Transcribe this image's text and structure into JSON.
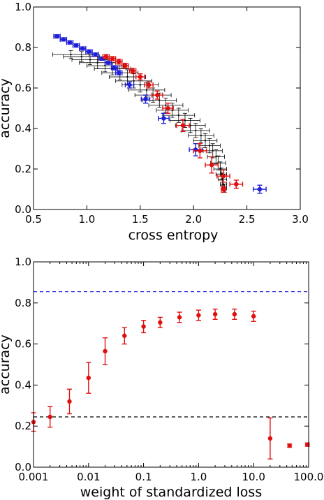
{
  "colors": {
    "blue": "#1f1fd6",
    "red": "#e01010",
    "black": "#000000",
    "blue_dashed": "#3030e0"
  },
  "chart_data": [
    {
      "type": "scatter",
      "xlabel": "cross entropy",
      "ylabel": "accuracy",
      "xlim": [
        0.5,
        3.0
      ],
      "ylim": [
        0.0,
        1.0
      ],
      "x_ticks": [
        "0.5",
        "1.0",
        "1.5",
        "2.0",
        "2.5",
        "3.0"
      ],
      "y_ticks": [
        "0.0",
        "0.2",
        "0.4",
        "0.6",
        "0.8",
        "1.0"
      ],
      "grid": false,
      "series": [
        {
          "color": "blue",
          "points": [
            {
              "x": 0.72,
              "y": 0.855,
              "xerr": 0.03,
              "yerr": 0.008
            },
            {
              "x": 0.78,
              "y": 0.84,
              "xerr": 0.03,
              "yerr": 0.008
            },
            {
              "x": 0.84,
              "y": 0.825,
              "xerr": 0.03,
              "yerr": 0.008
            },
            {
              "x": 0.9,
              "y": 0.81,
              "xerr": 0.03,
              "yerr": 0.008
            },
            {
              "x": 0.96,
              "y": 0.795,
              "xerr": 0.03,
              "yerr": 0.008
            },
            {
              "x": 1.02,
              "y": 0.78,
              "xerr": 0.03,
              "yerr": 0.008
            },
            {
              "x": 1.08,
              "y": 0.765,
              "xerr": 0.03,
              "yerr": 0.008
            },
            {
              "x": 1.14,
              "y": 0.745,
              "xerr": 0.03,
              "yerr": 0.008
            },
            {
              "x": 1.2,
              "y": 0.725,
              "xerr": 0.03,
              "yerr": 0.008
            },
            {
              "x": 1.26,
              "y": 0.7,
              "xerr": 0.03,
              "yerr": 0.01
            },
            {
              "x": 1.3,
              "y": 0.675,
              "xerr": 0.03,
              "yerr": 0.01
            },
            {
              "x": 1.4,
              "y": 0.615,
              "xerr": 0.04,
              "yerr": 0.015
            },
            {
              "x": 1.55,
              "y": 0.545,
              "xerr": 0.04,
              "yerr": 0.02
            },
            {
              "x": 1.72,
              "y": 0.45,
              "xerr": 0.05,
              "yerr": 0.025
            },
            {
              "x": 2.02,
              "y": 0.295,
              "xerr": 0.06,
              "yerr": 0.03
            },
            {
              "x": 2.62,
              "y": 0.1,
              "xerr": 0.06,
              "yerr": 0.02
            }
          ]
        },
        {
          "color": "red",
          "points": [
            {
              "x": 1.18,
              "y": 0.755,
              "xerr": 0.03,
              "yerr": 0.01
            },
            {
              "x": 1.24,
              "y": 0.745,
              "xerr": 0.03,
              "yerr": 0.01
            },
            {
              "x": 1.3,
              "y": 0.73,
              "xerr": 0.03,
              "yerr": 0.012
            },
            {
              "x": 1.36,
              "y": 0.71,
              "xerr": 0.03,
              "yerr": 0.012
            },
            {
              "x": 1.43,
              "y": 0.685,
              "xerr": 0.03,
              "yerr": 0.012
            },
            {
              "x": 1.5,
              "y": 0.655,
              "xerr": 0.04,
              "yerr": 0.015
            },
            {
              "x": 1.58,
              "y": 0.615,
              "xerr": 0.04,
              "yerr": 0.015
            },
            {
              "x": 1.66,
              "y": 0.565,
              "xerr": 0.05,
              "yerr": 0.02
            },
            {
              "x": 1.76,
              "y": 0.5,
              "xerr": 0.05,
              "yerr": 0.025
            },
            {
              "x": 1.9,
              "y": 0.415,
              "xerr": 0.06,
              "yerr": 0.03
            },
            {
              "x": 2.06,
              "y": 0.29,
              "xerr": 0.06,
              "yerr": 0.035
            },
            {
              "x": 2.17,
              "y": 0.22,
              "xerr": 0.06,
              "yerr": 0.04
            },
            {
              "x": 2.28,
              "y": 0.165,
              "xerr": 0.06,
              "yerr": 0.03
            },
            {
              "x": 2.4,
              "y": 0.125,
              "xerr": 0.06,
              "yerr": 0.02
            },
            {
              "x": 2.28,
              "y": 0.1,
              "xerr": 0.02,
              "yerr": 0.015
            }
          ]
        },
        {
          "color": "black",
          "points": [
            {
              "x": 0.85,
              "y": 0.765,
              "xerr": 0.17,
              "yerr": 0.02
            },
            {
              "x": 0.95,
              "y": 0.755,
              "xerr": 0.17,
              "yerr": 0.025
            },
            {
              "x": 1.03,
              "y": 0.74,
              "xerr": 0.17,
              "yerr": 0.025
            },
            {
              "x": 1.1,
              "y": 0.725,
              "xerr": 0.17,
              "yerr": 0.03
            },
            {
              "x": 1.17,
              "y": 0.71,
              "xerr": 0.17,
              "yerr": 0.03
            },
            {
              "x": 1.24,
              "y": 0.695,
              "xerr": 0.17,
              "yerr": 0.03
            },
            {
              "x": 1.31,
              "y": 0.675,
              "xerr": 0.17,
              "yerr": 0.035
            },
            {
              "x": 1.38,
              "y": 0.655,
              "xerr": 0.17,
              "yerr": 0.035
            },
            {
              "x": 1.44,
              "y": 0.635,
              "xerr": 0.17,
              "yerr": 0.035
            },
            {
              "x": 1.5,
              "y": 0.615,
              "xerr": 0.17,
              "yerr": 0.035
            },
            {
              "x": 1.56,
              "y": 0.59,
              "xerr": 0.17,
              "yerr": 0.035
            },
            {
              "x": 1.62,
              "y": 0.565,
              "xerr": 0.17,
              "yerr": 0.035
            },
            {
              "x": 1.68,
              "y": 0.54,
              "xerr": 0.16,
              "yerr": 0.035
            },
            {
              "x": 1.74,
              "y": 0.515,
              "xerr": 0.16,
              "yerr": 0.035
            },
            {
              "x": 1.8,
              "y": 0.49,
              "xerr": 0.15,
              "yerr": 0.035
            },
            {
              "x": 1.86,
              "y": 0.465,
              "xerr": 0.15,
              "yerr": 0.035
            },
            {
              "x": 1.92,
              "y": 0.44,
              "xerr": 0.14,
              "yerr": 0.035
            },
            {
              "x": 1.97,
              "y": 0.415,
              "xerr": 0.14,
              "yerr": 0.035
            },
            {
              "x": 2.02,
              "y": 0.39,
              "xerr": 0.13,
              "yerr": 0.035
            },
            {
              "x": 2.07,
              "y": 0.365,
              "xerr": 0.12,
              "yerr": 0.035
            },
            {
              "x": 2.11,
              "y": 0.34,
              "xerr": 0.11,
              "yerr": 0.035
            },
            {
              "x": 2.15,
              "y": 0.315,
              "xerr": 0.1,
              "yerr": 0.035
            },
            {
              "x": 2.18,
              "y": 0.29,
              "xerr": 0.09,
              "yerr": 0.035
            },
            {
              "x": 2.21,
              "y": 0.26,
              "xerr": 0.08,
              "yerr": 0.035
            },
            {
              "x": 2.23,
              "y": 0.23,
              "xerr": 0.07,
              "yerr": 0.035
            },
            {
              "x": 2.25,
              "y": 0.2,
              "xerr": 0.06,
              "yerr": 0.035
            },
            {
              "x": 2.26,
              "y": 0.175,
              "xerr": 0.05,
              "yerr": 0.03
            },
            {
              "x": 2.27,
              "y": 0.15,
              "xerr": 0.04,
              "yerr": 0.03
            },
            {
              "x": 2.28,
              "y": 0.125,
              "xerr": 0.03,
              "yerr": 0.025
            },
            {
              "x": 2.29,
              "y": 0.105,
              "xerr": 0.02,
              "yerr": 0.02
            }
          ]
        }
      ]
    },
    {
      "type": "scatter",
      "xlabel": "weight of standardized loss",
      "ylabel": "accuracy",
      "xscale": "log",
      "xlim": [
        0.001,
        100.0
      ],
      "ylim": [
        0.0,
        1.0
      ],
      "x_ticks": [
        "0.001",
        "0.01",
        "0.1",
        "1.0",
        "10.0",
        "100.0"
      ],
      "y_ticks": [
        "0.0",
        "0.2",
        "0.4",
        "0.6",
        "0.8",
        "1.0"
      ],
      "grid": false,
      "reference_lines": [
        {
          "y": 0.855,
          "color": "blue_dashed",
          "style": "dashed"
        },
        {
          "y": 0.245,
          "color": "black",
          "style": "dashed"
        }
      ],
      "series": [
        {
          "color": "red",
          "points": [
            {
              "x": 0.001,
              "y": 0.22,
              "yerr": 0.045
            },
            {
              "x": 0.002,
              "y": 0.245,
              "yerr": 0.05
            },
            {
              "x": 0.0045,
              "y": 0.32,
              "yerr": 0.06
            },
            {
              "x": 0.01,
              "y": 0.435,
              "yerr": 0.075
            },
            {
              "x": 0.02,
              "y": 0.565,
              "yerr": 0.065
            },
            {
              "x": 0.045,
              "y": 0.64,
              "yerr": 0.04
            },
            {
              "x": 0.1,
              "y": 0.685,
              "yerr": 0.03
            },
            {
              "x": 0.2,
              "y": 0.705,
              "yerr": 0.025
            },
            {
              "x": 0.45,
              "y": 0.73,
              "yerr": 0.025
            },
            {
              "x": 1.0,
              "y": 0.74,
              "yerr": 0.025
            },
            {
              "x": 2.0,
              "y": 0.745,
              "yerr": 0.025
            },
            {
              "x": 4.5,
              "y": 0.745,
              "yerr": 0.025
            },
            {
              "x": 10.0,
              "y": 0.735,
              "yerr": 0.025
            },
            {
              "x": 20.0,
              "y": 0.14,
              "yerr": 0.1
            },
            {
              "x": 45.0,
              "y": 0.105,
              "yerr": 0.008
            },
            {
              "x": 95.0,
              "y": 0.11,
              "yerr": 0.008
            }
          ]
        }
      ]
    }
  ]
}
